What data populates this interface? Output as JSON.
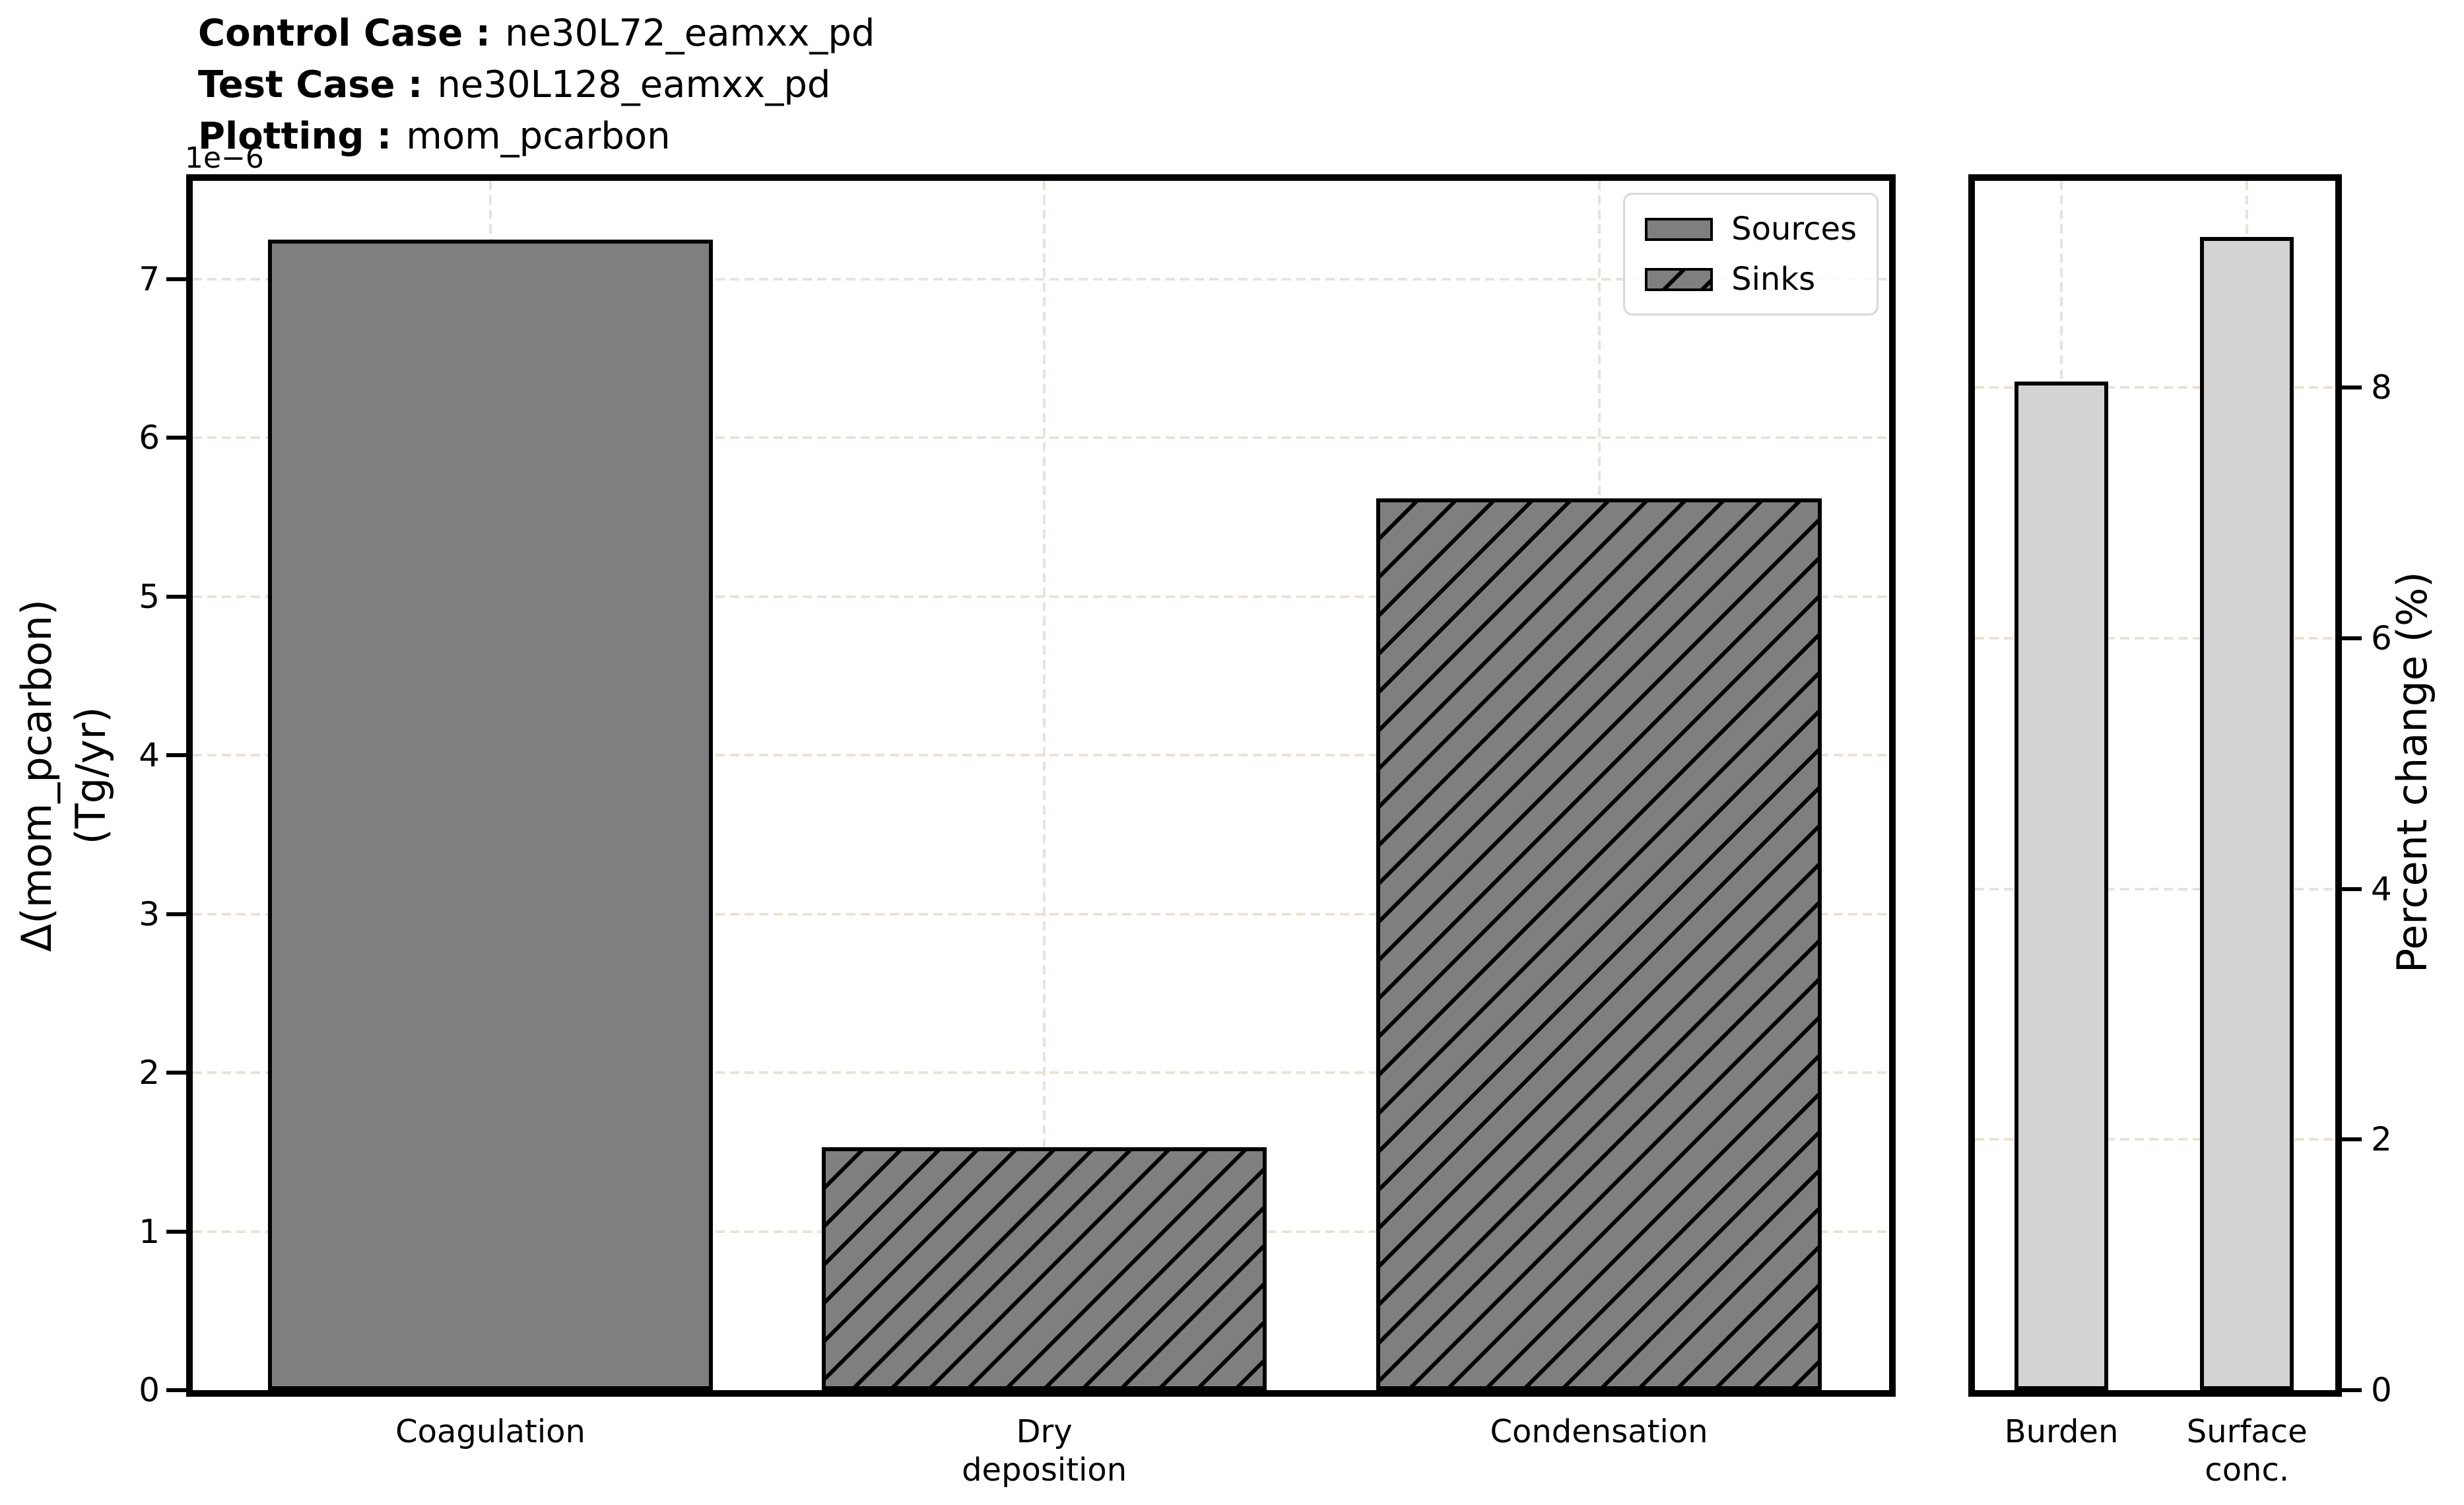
{
  "header": {
    "control_case_label": "Control Case :",
    "control_case_value": "ne30L72_eamxx_pd",
    "test_case_label": "Test Case :",
    "test_case_value": "ne30L128_eamxx_pd",
    "plotting_label": "Plotting :",
    "plotting_value": "mom_pcarbon"
  },
  "colors": {
    "source_fill": "#7f7f7f",
    "sink_fill": "#7f7f7f",
    "hatch": "#000000",
    "percent_fill": "#d3d3d3",
    "edge": "#000000",
    "grid": "#e9e2d8",
    "legend_border": "#d8d8d8"
  },
  "chart_data": [
    {
      "type": "bar",
      "categories": [
        "Coagulation",
        "Dry\ndeposition",
        "Condensation"
      ],
      "values": [
        7.25,
        1.53,
        5.62
      ],
      "bar_styles": [
        "solid",
        "hatched",
        "hatched"
      ],
      "offset_text": "1e−6",
      "ylabel_lines": [
        "Δ(mom_pcarbon)",
        "(Tg/yr)"
      ],
      "yticks": [
        0,
        1,
        2,
        3,
        4,
        5,
        6,
        7
      ],
      "ylim": [
        0,
        7.62
      ],
      "grid": true,
      "legend": {
        "position": "upper right",
        "entries": [
          {
            "label": "Sources",
            "style": "solid"
          },
          {
            "label": "Sinks",
            "style": "hatched"
          }
        ]
      }
    },
    {
      "type": "bar",
      "categories": [
        "Burden",
        "Surface\nconc."
      ],
      "values": [
        8.05,
        9.2
      ],
      "bar_styles": [
        "plain",
        "plain"
      ],
      "ylabel": "Percent change (%)",
      "yticks": [
        0,
        2,
        4,
        6,
        8
      ],
      "ylim": [
        0,
        9.65
      ],
      "grid": true
    }
  ]
}
